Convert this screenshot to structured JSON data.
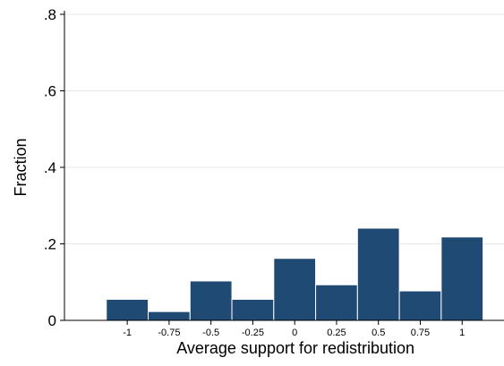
{
  "chart_data": {
    "type": "bar",
    "xlabel": "Average support for redistribution",
    "ylabel": "Fraction",
    "bar_color": "#1f4a73",
    "grid": true,
    "grid_color": "#e6e6e6",
    "ylim": [
      0,
      0.8
    ],
    "xlim": [
      -1.375,
      1.25
    ],
    "y_ticks": [
      {
        "value": 0,
        "label": "0"
      },
      {
        "value": 0.2,
        "label": ".2"
      },
      {
        "value": 0.4,
        "label": ".4"
      },
      {
        "value": 0.6,
        "label": ".6"
      },
      {
        "value": 0.8,
        "label": ".8"
      }
    ],
    "x_ticks": [
      {
        "value": -1,
        "label": "-1"
      },
      {
        "value": -0.75,
        "label": "-0.75"
      },
      {
        "value": -0.5,
        "label": "-0.5"
      },
      {
        "value": -0.25,
        "label": "-0.25"
      },
      {
        "value": 0,
        "label": "0"
      },
      {
        "value": 0.25,
        "label": "0.25"
      },
      {
        "value": 0.5,
        "label": "0.5"
      },
      {
        "value": 0.75,
        "label": "0.75"
      },
      {
        "value": 1,
        "label": "1"
      }
    ],
    "bins": [
      {
        "x_start": -1.125,
        "x_end": -0.875,
        "value": 0.055
      },
      {
        "x_start": -0.875,
        "x_end": -0.625,
        "value": 0.023
      },
      {
        "x_start": -0.625,
        "x_end": -0.375,
        "value": 0.103
      },
      {
        "x_start": -0.375,
        "x_end": -0.125,
        "value": 0.055
      },
      {
        "x_start": -0.125,
        "x_end": 0.125,
        "value": 0.162
      },
      {
        "x_start": 0.125,
        "x_end": 0.375,
        "value": 0.093
      },
      {
        "x_start": 0.375,
        "x_end": 0.625,
        "value": 0.241
      },
      {
        "x_start": 0.625,
        "x_end": 0.875,
        "value": 0.077
      },
      {
        "x_start": 0.875,
        "x_end": 1.125,
        "value": 0.218
      }
    ]
  }
}
